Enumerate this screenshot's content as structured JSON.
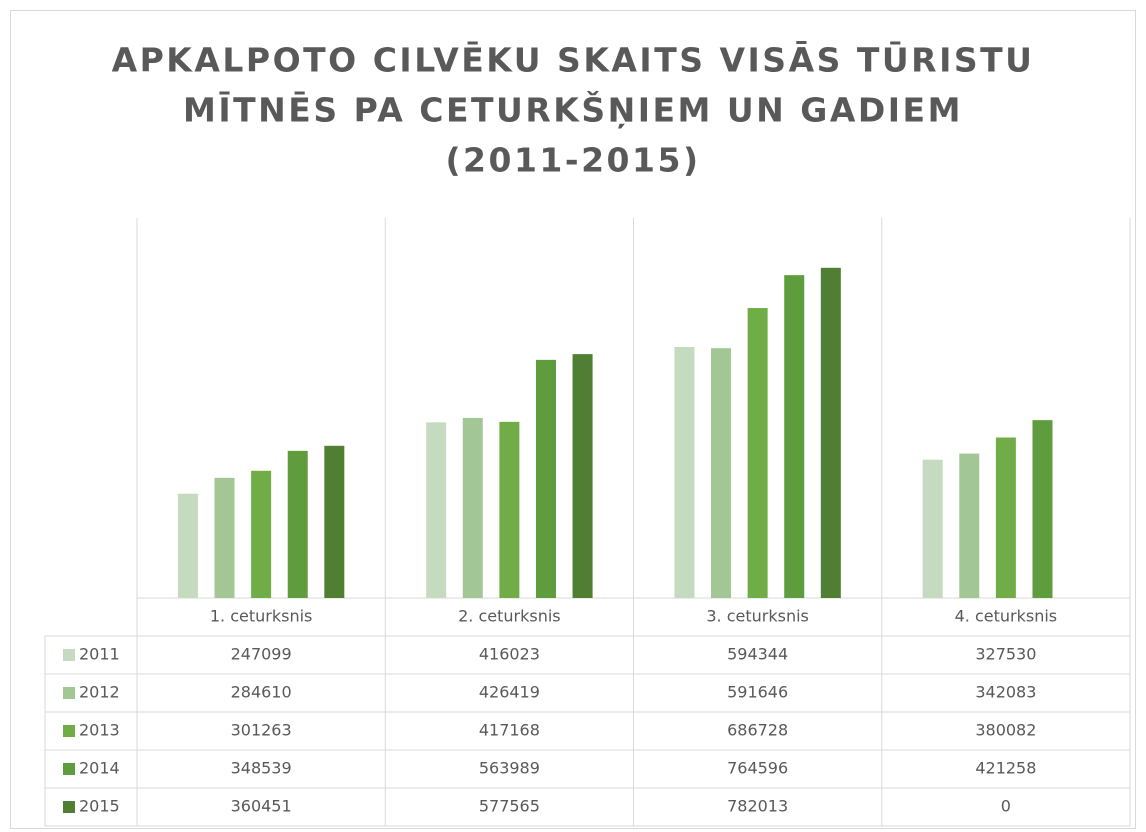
{
  "chart_data": {
    "type": "bar",
    "title": [
      "APKALPOTO CILVĒKU SKAITS VISĀS TŪRISTU",
      "MĪTNĒS PA CETURKŠŅIEM UN GADIEM",
      "(2011-2015)"
    ],
    "categories": [
      "1. ceturksnis",
      "2. ceturksnis",
      "3. ceturksnis",
      "4. ceturksnis"
    ],
    "series": [
      {
        "name": "2011",
        "color": "#c5dbbf",
        "values": [
          247099,
          416023,
          594344,
          327530
        ]
      },
      {
        "name": "2012",
        "color": "#a3c794",
        "values": [
          284610,
          426419,
          591646,
          342083
        ]
      },
      {
        "name": "2013",
        "color": "#70ad47",
        "values": [
          301263,
          417168,
          686728,
          380082
        ]
      },
      {
        "name": "2014",
        "color": "#5e9c3e",
        "values": [
          348539,
          563989,
          764596,
          421258
        ]
      },
      {
        "name": "2015",
        "color": "#507e32",
        "values": [
          360451,
          577565,
          782013,
          0
        ]
      }
    ],
    "ylim": [
      0,
      900000
    ]
  }
}
